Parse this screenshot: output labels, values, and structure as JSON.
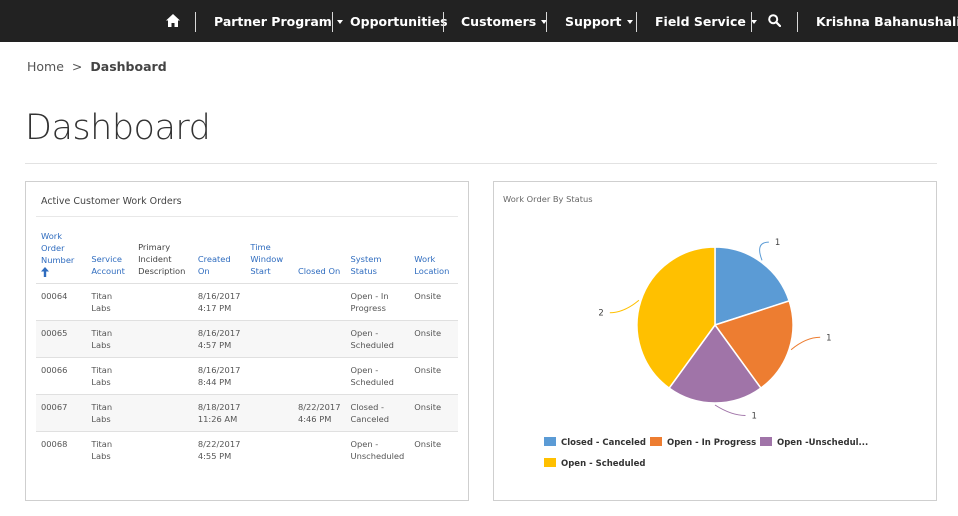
{
  "nav": {
    "home_icon": "home-icon",
    "items": [
      {
        "label": "Partner Program",
        "dropdown": true
      },
      {
        "label": "Opportunities",
        "dropdown": false
      },
      {
        "label": "Customers",
        "dropdown": true
      },
      {
        "label": "Support",
        "dropdown": true
      },
      {
        "label": "Field Service",
        "dropdown": true
      }
    ],
    "search_icon": "search-icon",
    "user": "Krishna Bahanushali"
  },
  "breadcrumb": {
    "home": "Home",
    "separator": ">",
    "current": "Dashboard"
  },
  "page_title": "Dashboard",
  "work_orders": {
    "heading": "Active Customer Work Orders",
    "columns": [
      {
        "label": "Work Order Number",
        "sortable": true,
        "sorted": "asc"
      },
      {
        "label": "Service Account",
        "sortable": true
      },
      {
        "label": "Primary Incident Description",
        "sortable": false
      },
      {
        "label": "Created On",
        "sortable": true
      },
      {
        "label": "Time Window Start",
        "sortable": true
      },
      {
        "label": "Closed On",
        "sortable": true
      },
      {
        "label": "System Status",
        "sortable": true
      },
      {
        "label": "Work Location",
        "sortable": true
      }
    ],
    "rows": [
      {
        "number": "00064",
        "account": "Titan Labs",
        "incident": "",
        "created": "8/16/2017 4:17 PM",
        "window_start": "",
        "closed": "",
        "status": "Open - In Progress",
        "location": "Onsite"
      },
      {
        "number": "00065",
        "account": "Titan Labs",
        "incident": "",
        "created": "8/16/2017 4:57 PM",
        "window_start": "",
        "closed": "",
        "status": "Open - Scheduled",
        "location": "Onsite"
      },
      {
        "number": "00066",
        "account": "Titan Labs",
        "incident": "",
        "created": "8/16/2017 8:44 PM",
        "window_start": "",
        "closed": "",
        "status": "Open - Scheduled",
        "location": "Onsite"
      },
      {
        "number": "00067",
        "account": "Titan Labs",
        "incident": "",
        "created": "8/18/2017 11:26 AM",
        "window_start": "",
        "closed": "8/22/2017 4:46 PM",
        "status": "Closed - Canceled",
        "location": "Onsite"
      },
      {
        "number": "00068",
        "account": "Titan Labs",
        "incident": "",
        "created": "8/22/2017 4:55 PM",
        "window_start": "",
        "closed": "",
        "status": "Open - Unscheduled",
        "location": "Onsite"
      }
    ]
  },
  "chart_data": {
    "type": "pie",
    "title": "Work Order By Status",
    "slices": [
      {
        "label": "Closed - Canceled",
        "value": 1,
        "color": "#5b9bd5"
      },
      {
        "label": "Open - In Progress",
        "value": 1,
        "color": "#ed7d31"
      },
      {
        "label": "Open -Unschedul...",
        "value": 1,
        "color": "#a074a8"
      },
      {
        "label": "Open - Scheduled",
        "value": 2,
        "color": "#ffc000"
      }
    ],
    "legend_position": "bottom"
  }
}
